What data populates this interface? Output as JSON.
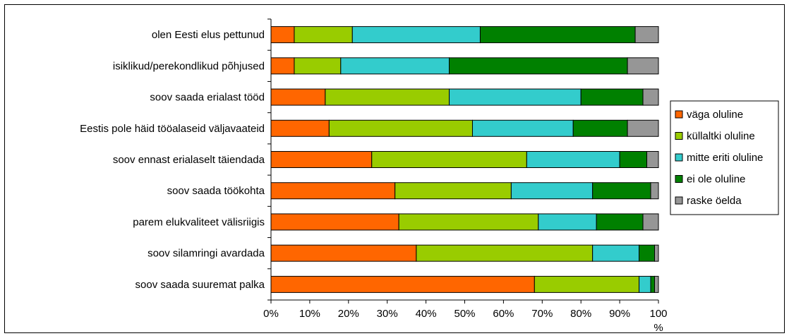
{
  "chart_data": {
    "type": "bar",
    "orientation": "horizontal",
    "stacked": "percent",
    "categories": [
      "olen Eesti elus pettunud",
      "isiklikud/perekondlikud põhjused",
      "soov saada erialast tööd",
      "Eestis pole häid tööalaseid väljavaateid",
      "soov ennast erialaselt täiendada",
      "soov saada töökohta",
      "parem elukvaliteet välisriigis",
      "soov silamringi avardada",
      "soov saada suuremat palka"
    ],
    "series": [
      {
        "name": "väga oluline",
        "color": "#ff6600",
        "values": [
          6,
          6,
          14,
          15,
          26,
          32,
          33,
          37.5,
          68
        ]
      },
      {
        "name": "küllaltki oluline",
        "color": "#99cc00",
        "values": [
          15,
          12,
          32,
          37,
          40,
          30,
          36,
          45.5,
          27
        ]
      },
      {
        "name": "mitte eriti oluline",
        "color": "#33cccc",
        "values": [
          33,
          28,
          34,
          26,
          24,
          21,
          15,
          12,
          3
        ]
      },
      {
        "name": "ei ole oluline",
        "color": "#008000",
        "values": [
          40,
          46,
          16,
          14,
          7,
          15,
          12,
          4,
          1
        ]
      },
      {
        "name": "raske öelda",
        "color": "#969696",
        "values": [
          6,
          8,
          4,
          8,
          3,
          2,
          4,
          1,
          1
        ]
      }
    ],
    "xlabel": "%",
    "xlim": [
      0,
      100
    ],
    "xticks": [
      "0%",
      "10%",
      "20%",
      "30%",
      "40%",
      "50%",
      "60%",
      "70%",
      "80%",
      "90%",
      "100"
    ],
    "grid": false,
    "legend_position": "right"
  }
}
